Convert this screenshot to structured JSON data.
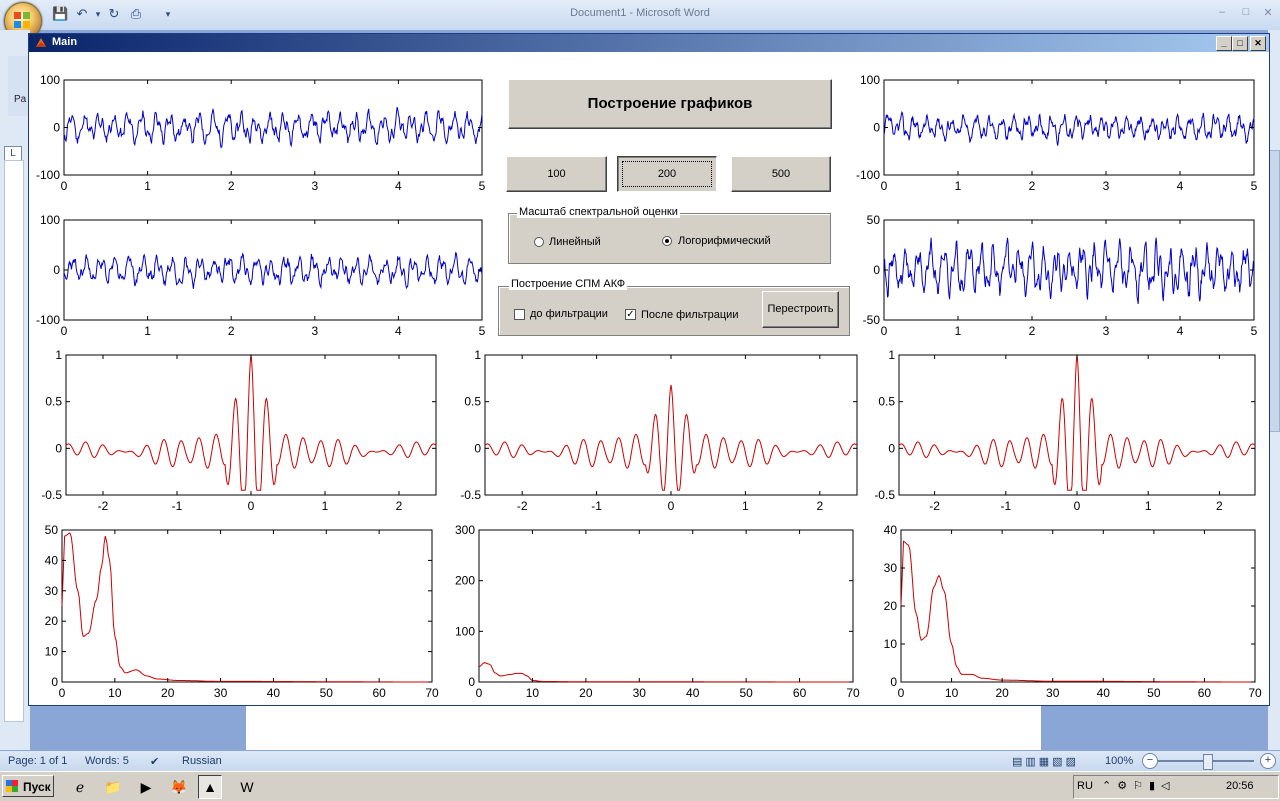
{
  "word": {
    "title": "Document1 - Microsoft Word",
    "paste_label": "Pa",
    "status": {
      "page": "Page: 1 of 1",
      "words": "Words: 5",
      "language": "Russian",
      "zoom": "100%"
    },
    "controls": {
      "minimize": "–",
      "maximize": "□",
      "close": "✕"
    }
  },
  "taskbar": {
    "start_label": "Пуск",
    "lang": "RU",
    "time": "20:56"
  },
  "matlab": {
    "title": "Main",
    "controls": {
      "minimize": "_",
      "maximize": "□",
      "close": "✕"
    },
    "plot_button": "Построение графиков",
    "n_buttons": [
      "100",
      "200",
      "500"
    ],
    "scale_group": {
      "title": "Масштаб спектральной оценки",
      "linear": "Линейный",
      "log": "Логорифмический",
      "selected": "log"
    },
    "spm_group": {
      "title": "Построение СПМ АКФ",
      "before": "до фильтрации",
      "before_checked": false,
      "after": "После фильтрации",
      "after_checked": true,
      "rebuild": "Перестроить"
    },
    "colors": {
      "signal": "#0000cc",
      "acf": "#cc0000",
      "psd": "#cc0000"
    }
  },
  "chart_data": [
    {
      "id": "sig1",
      "type": "line",
      "color": "#0000cc",
      "xlim": [
        0,
        5
      ],
      "ylim": [
        -100,
        100
      ],
      "xticks": [
        0,
        1,
        2,
        3,
        4,
        5
      ],
      "yticks": [
        -100,
        0,
        100
      ],
      "seed": 11,
      "amp": 22
    },
    {
      "id": "sig2",
      "type": "line",
      "color": "#0000cc",
      "xlim": [
        0,
        5
      ],
      "ylim": [
        -100,
        100
      ],
      "xticks": [
        0,
        1,
        2,
        3,
        4,
        5
      ],
      "yticks": [
        -100,
        0,
        100
      ],
      "seed": 23,
      "amp": 20
    },
    {
      "id": "sig3",
      "type": "line",
      "color": "#0000cc",
      "xlim": [
        0,
        5
      ],
      "ylim": [
        -100,
        100
      ],
      "xticks": [
        0,
        1,
        2,
        3,
        4,
        5
      ],
      "yticks": [
        -100,
        0,
        100
      ],
      "seed": 37,
      "amp": 18
    },
    {
      "id": "sig4",
      "type": "line",
      "color": "#0000cc",
      "xlim": [
        0,
        5
      ],
      "ylim": [
        -50,
        50
      ],
      "xticks": [
        0,
        1,
        2,
        3,
        4,
        5
      ],
      "yticks": [
        -50,
        0,
        50
      ],
      "seed": 41,
      "amp": 17
    },
    {
      "id": "acf1",
      "type": "line",
      "color": "#cc0000",
      "xlim": [
        -2.5,
        2.5
      ],
      "ylim": [
        -0.5,
        1
      ],
      "xticks": [
        -2,
        -1,
        0,
        1,
        2
      ],
      "yticks": [
        -0.5,
        0,
        0.5,
        1
      ],
      "peak": 1.0,
      "side": 0.22
    },
    {
      "id": "acf2",
      "type": "line",
      "color": "#cc0000",
      "xlim": [
        -2.5,
        2.5
      ],
      "ylim": [
        -0.5,
        1
      ],
      "xticks": [
        -2,
        -1,
        0,
        1,
        2
      ],
      "yticks": [
        -0.5,
        0,
        0.5,
        1
      ],
      "peak": 0.68,
      "side": 0.22
    },
    {
      "id": "acf3",
      "type": "line",
      "color": "#cc0000",
      "xlim": [
        -2.5,
        2.5
      ],
      "ylim": [
        -0.5,
        1
      ],
      "xticks": [
        -2,
        -1,
        0,
        1,
        2
      ],
      "yticks": [
        -0.5,
        0,
        0.5,
        1
      ],
      "peak": 1.0,
      "side": 0.22
    },
    {
      "id": "psd1",
      "type": "line",
      "color": "#cc0000",
      "xlim": [
        0,
        70
      ],
      "ylim": [
        0,
        50
      ],
      "xticks": [
        0,
        10,
        20,
        30,
        40,
        50,
        60,
        70
      ],
      "yticks": [
        0,
        10,
        20,
        30,
        40,
        50
      ],
      "points": [
        [
          0,
          25
        ],
        [
          0.5,
          48
        ],
        [
          1.5,
          49
        ],
        [
          3,
          30
        ],
        [
          4,
          15
        ],
        [
          5,
          16
        ],
        [
          6.5,
          27
        ],
        [
          7.5,
          38
        ],
        [
          8.2,
          48
        ],
        [
          9,
          40
        ],
        [
          10,
          15
        ],
        [
          11,
          5
        ],
        [
          12,
          3
        ],
        [
          14,
          4
        ],
        [
          16,
          2
        ],
        [
          18,
          1
        ],
        [
          22,
          0.5
        ],
        [
          30,
          0.2
        ],
        [
          70,
          0
        ]
      ]
    },
    {
      "id": "psd2",
      "type": "line",
      "color": "#cc0000",
      "xlim": [
        0,
        70
      ],
      "ylim": [
        0,
        300
      ],
      "xticks": [
        0,
        10,
        20,
        30,
        40,
        50,
        60,
        70
      ],
      "yticks": [
        0,
        100,
        200,
        300
      ],
      "points": [
        [
          0,
          30
        ],
        [
          1,
          38
        ],
        [
          2,
          35
        ],
        [
          3,
          18
        ],
        [
          4,
          12
        ],
        [
          6,
          15
        ],
        [
          7,
          17
        ],
        [
          8,
          17
        ],
        [
          9,
          12
        ],
        [
          10,
          3
        ],
        [
          12,
          1
        ],
        [
          20,
          0.5
        ],
        [
          70,
          0
        ]
      ]
    },
    {
      "id": "psd3",
      "type": "line",
      "color": "#cc0000",
      "xlim": [
        0,
        70
      ],
      "ylim": [
        0,
        40
      ],
      "xticks": [
        0,
        10,
        20,
        30,
        40,
        50,
        60,
        70
      ],
      "yticks": [
        0,
        10,
        20,
        30,
        40
      ],
      "points": [
        [
          0,
          20
        ],
        [
          0.5,
          37
        ],
        [
          1.5,
          36
        ],
        [
          3,
          18
        ],
        [
          4,
          11
        ],
        [
          5,
          12
        ],
        [
          6.5,
          25
        ],
        [
          7.5,
          28
        ],
        [
          8.5,
          24
        ],
        [
          10,
          10
        ],
        [
          11,
          4
        ],
        [
          12,
          2
        ],
        [
          14,
          2
        ],
        [
          16,
          1
        ],
        [
          20,
          0.5
        ],
        [
          30,
          0.2
        ],
        [
          70,
          0
        ]
      ]
    }
  ]
}
